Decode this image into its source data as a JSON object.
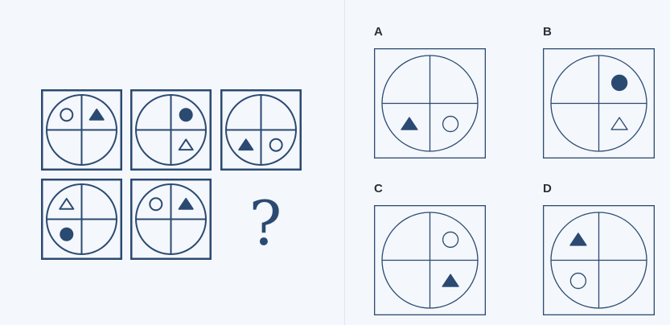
{
  "colors": {
    "ink": "#2b4a72",
    "background": "#f4f7fb",
    "divider": "#e1e6ee"
  },
  "question_mark": "?",
  "sequence": [
    {
      "name": "seq-1",
      "shapes": [
        {
          "shape": "circle",
          "filled": false,
          "quadrant": "top-left"
        },
        {
          "shape": "triangle",
          "filled": true,
          "quadrant": "top-right"
        }
      ]
    },
    {
      "name": "seq-2",
      "shapes": [
        {
          "shape": "circle",
          "filled": true,
          "quadrant": "top-right"
        },
        {
          "shape": "triangle",
          "filled": false,
          "quadrant": "bottom-right"
        }
      ]
    },
    {
      "name": "seq-3",
      "shapes": [
        {
          "shape": "triangle",
          "filled": true,
          "quadrant": "bottom-left"
        },
        {
          "shape": "circle",
          "filled": false,
          "quadrant": "bottom-right"
        }
      ]
    },
    {
      "name": "seq-4",
      "shapes": [
        {
          "shape": "triangle",
          "filled": false,
          "quadrant": "top-left"
        },
        {
          "shape": "circle",
          "filled": true,
          "quadrant": "bottom-left"
        }
      ]
    },
    {
      "name": "seq-5",
      "shapes": [
        {
          "shape": "circle",
          "filled": false,
          "quadrant": "top-left"
        },
        {
          "shape": "triangle",
          "filled": true,
          "quadrant": "top-right"
        }
      ]
    }
  ],
  "options": [
    {
      "label": "A",
      "shapes": [
        {
          "shape": "triangle",
          "filled": true,
          "quadrant": "bottom-left"
        },
        {
          "shape": "circle",
          "filled": false,
          "quadrant": "bottom-right"
        }
      ]
    },
    {
      "label": "B",
      "shapes": [
        {
          "shape": "circle",
          "filled": true,
          "quadrant": "top-right"
        },
        {
          "shape": "triangle",
          "filled": false,
          "quadrant": "bottom-right"
        }
      ]
    },
    {
      "label": "C",
      "shapes": [
        {
          "shape": "circle",
          "filled": false,
          "quadrant": "top-right"
        },
        {
          "shape": "triangle",
          "filled": true,
          "quadrant": "bottom-right"
        }
      ]
    },
    {
      "label": "D",
      "shapes": [
        {
          "shape": "triangle",
          "filled": true,
          "quadrant": "top-left"
        },
        {
          "shape": "circle",
          "filled": false,
          "quadrant": "bottom-left"
        }
      ]
    }
  ]
}
